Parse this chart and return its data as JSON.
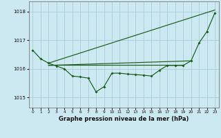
{
  "title": "Graphe pression niveau de la mer (hPa)",
  "bg_color": "#cce8f0",
  "grid_color": "#aaccd8",
  "line_color": "#1a5c1a",
  "xlim": [
    -0.5,
    23.5
  ],
  "ylim": [
    1014.65,
    1018.35
  ],
  "yticks": [
    1015,
    1016,
    1017,
    1018
  ],
  "xtick_labels": [
    "0",
    "1",
    "2",
    "3",
    "4",
    "5",
    "6",
    "7",
    "8",
    "9",
    "10",
    "11",
    "12",
    "13",
    "14",
    "15",
    "16",
    "17",
    "18",
    "19",
    "20",
    "21",
    "22",
    "23"
  ],
  "main_line_x": [
    0,
    1,
    2,
    3,
    4,
    5,
    6,
    7,
    8,
    9,
    10,
    11,
    12,
    13,
    14,
    15,
    16,
    17,
    18,
    19,
    20,
    21,
    22,
    23
  ],
  "main_line_y": [
    1016.65,
    1016.35,
    1016.2,
    1016.1,
    1016.0,
    1015.75,
    1015.72,
    1015.68,
    1015.2,
    1015.38,
    1015.85,
    1015.85,
    1015.82,
    1015.8,
    1015.78,
    1015.75,
    1015.95,
    1016.12,
    1016.12,
    1016.12,
    1016.28,
    1016.9,
    1017.3,
    1017.95
  ],
  "diag_line_x": [
    2,
    23
  ],
  "diag_line_y": [
    1016.2,
    1018.05
  ],
  "flat_line1_x": [
    2,
    19
  ],
  "flat_line1_y": [
    1016.15,
    1016.15
  ],
  "flat_line2_x": [
    2,
    20
  ],
  "flat_line2_y": [
    1016.12,
    1016.28
  ]
}
